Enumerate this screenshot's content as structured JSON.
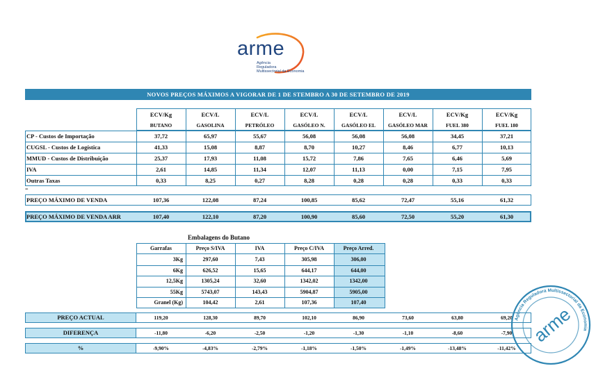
{
  "logo": {
    "word": "arme",
    "sub_lines": [
      "Agência",
      "Reguladora",
      "Multissectorial da Economia"
    ]
  },
  "banner": "NOVOS PREÇOS MÁXIMOS A VIGORAR DE 1 DE STEMBRO A 30 DE SETEMBRO DE 2019",
  "columns": [
    {
      "unit": "ECV/Kg",
      "name": "BUTANO"
    },
    {
      "unit": "ECV/L",
      "name": "GASOLINA"
    },
    {
      "unit": "ECV/L",
      "name": "PETRÓLEO"
    },
    {
      "unit": "ECV/L",
      "name": "GASÓLEO N."
    },
    {
      "unit": "ECV/L",
      "name": "GASÓLEO EL"
    },
    {
      "unit": "ECV/L",
      "name": "GASÓLEO MAR"
    },
    {
      "unit": "ECV/Kg",
      "name": "FUEL 380"
    },
    {
      "unit": "ECV/Kg",
      "name": "FUEL 180"
    }
  ],
  "rows": [
    {
      "label": "CP - Custos de Importação",
      "values": [
        "37,72",
        "65,97",
        "55,67",
        "56,08",
        "56,08",
        "56,08",
        "34,45",
        "37,21"
      ]
    },
    {
      "label": "CUGSL - Custos de Logística",
      "values": [
        "41,33",
        "15,08",
        "8,87",
        "8,70",
        "10,27",
        "8,46",
        "6,77",
        "10,13"
      ]
    },
    {
      "label": "MMUD - Custos de Distribuição",
      "values": [
        "25,37",
        "17,93",
        "11,08",
        "15,72",
        "7,86",
        "7,65",
        "6,46",
        "5,69"
      ]
    },
    {
      "label": "IVA",
      "values": [
        "2,61",
        "14,85",
        "11,34",
        "12,07",
        "11,13",
        "0,00",
        "7,15",
        "7,95"
      ]
    },
    {
      "label": "Outras Taxas",
      "values": [
        "0,33",
        "8,25",
        "0,27",
        "8,28",
        "0,28",
        "0,28",
        "0,33",
        "0,33"
      ]
    }
  ],
  "preco_maximo": {
    "label": "PREÇO MÁXIMO DE VENDA",
    "values": [
      "107,36",
      "122,08",
      "87,24",
      "100,85",
      "85,62",
      "72,47",
      "55,16",
      "61,32"
    ]
  },
  "preco_maximo_arr": {
    "label": "PREÇO MÁXIMO DE VENDA ARR",
    "values": [
      "107,40",
      "122,10",
      "87,20",
      "100,90",
      "85,60",
      "72,50",
      "55,20",
      "61,30"
    ]
  },
  "butano": {
    "title": "Embalagens do Butano",
    "headers": [
      "Garrafas",
      "Preço S/IVA",
      "IVA",
      "Preço C/IVA",
      "Preço Arred."
    ],
    "rows": [
      [
        "3Kg",
        "297,60",
        "7,43",
        "305,98",
        "306,00"
      ],
      [
        "6Kg",
        "626,52",
        "15,65",
        "644,17",
        "644,00"
      ],
      [
        "12,5Kg",
        "1305,24",
        "32,60",
        "1342,02",
        "1342,00"
      ],
      [
        "55Kg",
        "5743,07",
        "143,43",
        "5904,87",
        "5905,00"
      ],
      [
        "Granel (Kg)",
        "104,42",
        "2,61",
        "107,36",
        "107,40"
      ]
    ]
  },
  "preco_actual": {
    "label": "PREÇO ACTUAL",
    "values": [
      "119,20",
      "128,30",
      "89,70",
      "102,10",
      "86,90",
      "73,60",
      "63,80",
      "69,20"
    ]
  },
  "diferenca": {
    "label": "DIFERENÇA",
    "values": [
      "-11,80",
      "-6,20",
      "-2,50",
      "-1,20",
      "-1,30",
      "-1,10",
      "-8,60",
      "-7,90"
    ]
  },
  "percent": {
    "label": "%",
    "values": [
      "-9,90%",
      "-4,83%",
      "-2,79%",
      "-1,18%",
      "-1,50%",
      "-1,49%",
      "-13,48%",
      "-11,42%"
    ]
  },
  "stamp": {
    "word": "arme",
    "ring_text": "Agência Reguladora Multissectorial da Economia"
  },
  "colors": {
    "accent": "#2f86b3",
    "highlight": "#bfe3f2",
    "logo": "#21467f",
    "logo_arc_a": "#e64b2a",
    "logo_arc_b": "#f6a623"
  }
}
